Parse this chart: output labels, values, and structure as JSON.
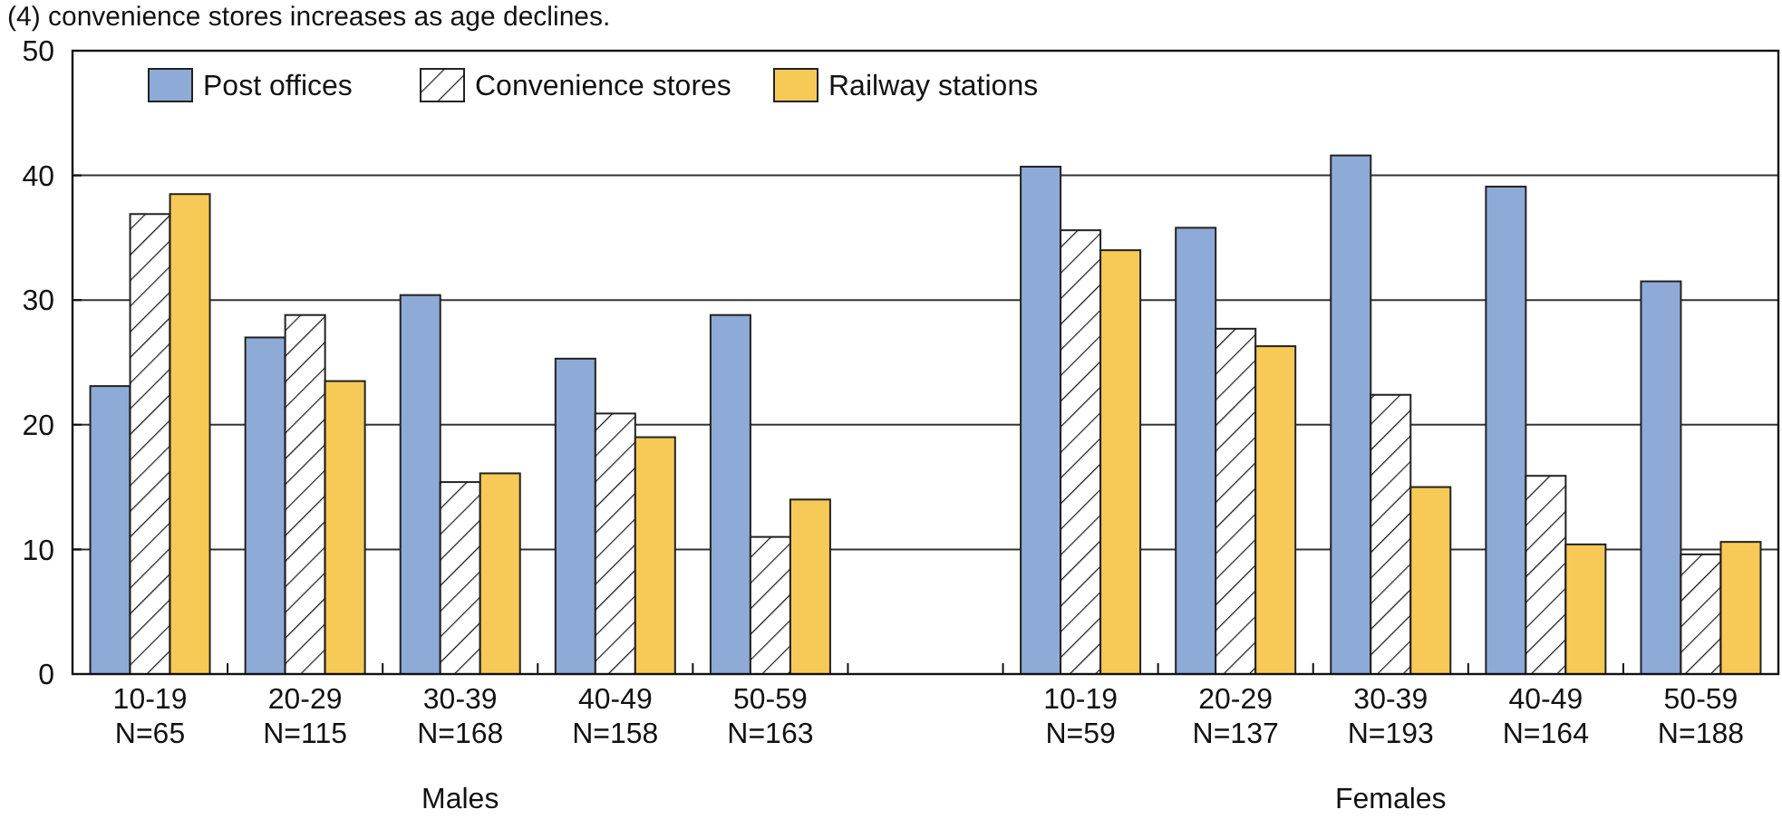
{
  "chart_data": {
    "type": "bar",
    "title": "(4) convenience stores increases as age declines.",
    "categories": [
      "10-19\nN=65",
      "20-29\nN=115",
      "30-39\nN=168",
      "40-49\nN=158",
      "50-59\nN=163",
      null,
      "10-19\nN=59",
      "20-29\nN=137",
      "30-39\nN=193",
      "40-49\nN=164",
      "50-59\nN=188"
    ],
    "series": [
      {
        "name": "Post offices",
        "color": "#8eaad6",
        "values": [
          23.1,
          27.0,
          30.4,
          25.3,
          28.8,
          null,
          40.7,
          35.8,
          41.6,
          39.1,
          31.5
        ]
      },
      {
        "name": "Convenience stores",
        "color": "#ffffff",
        "values": [
          36.9,
          28.8,
          15.4,
          20.9,
          11.0,
          null,
          35.6,
          27.7,
          22.4,
          15.9,
          9.6
        ]
      },
      {
        "name": "Railway stations",
        "color": "#f7ca57",
        "values": [
          38.5,
          23.5,
          16.1,
          19.0,
          14.0,
          null,
          34.0,
          26.3,
          15.0,
          10.4,
          10.6
        ]
      }
    ],
    "annotations": [
      "Males",
      "Females"
    ],
    "ylim": [
      0,
      50
    ],
    "yticks": [
      0,
      10,
      20,
      30,
      40,
      50
    ],
    "grid": "y",
    "legend": "top left"
  }
}
